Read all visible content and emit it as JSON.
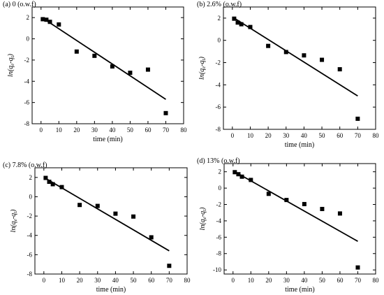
{
  "chart_data": [
    {
      "type": "scatter",
      "title": "(a) 0 (o.w.f)",
      "xlabel": "time (min)",
      "ylabel_base": "ln(q",
      "ylabel_sub1": "e",
      "ylabel_mid": "-q",
      "ylabel_sub2": "t",
      "ylabel_end": ")",
      "xlim": [
        -5,
        80
      ],
      "ylim": [
        -8,
        3
      ],
      "xticks": [
        0,
        10,
        20,
        30,
        40,
        50,
        60,
        70,
        80
      ],
      "yticks": [
        -8,
        -6,
        -4,
        -2,
        0,
        2
      ],
      "grid": false,
      "series": [
        {
          "x": [
            1,
            3,
            5,
            10,
            20,
            30,
            40,
            50,
            60,
            70
          ],
          "y": [
            1.85,
            1.8,
            1.6,
            1.35,
            -1.2,
            -1.6,
            -2.6,
            -3.2,
            -2.9,
            -7.0
          ]
        }
      ],
      "fit_line": {
        "x": [
          1,
          70
        ],
        "y": [
          1.95,
          -5.7
        ]
      }
    },
    {
      "type": "scatter",
      "title": "(b) 2.6% (o.w.f)",
      "xlabel": "time (min)",
      "ylabel_base": "ln(q",
      "ylabel_sub1": "e",
      "ylabel_mid": "-q",
      "ylabel_sub2": "t",
      "ylabel_end": ")",
      "xlim": [
        -5,
        80
      ],
      "ylim": [
        -8,
        3
      ],
      "xticks": [
        0,
        10,
        20,
        30,
        40,
        50,
        60,
        70,
        80
      ],
      "yticks": [
        -8,
        -6,
        -4,
        -2,
        0,
        2
      ],
      "grid": false,
      "series": [
        {
          "x": [
            1,
            3,
            5,
            10,
            20,
            30,
            40,
            50,
            60,
            70
          ],
          "y": [
            1.95,
            1.6,
            1.45,
            1.2,
            -0.5,
            -1.05,
            -1.35,
            -1.75,
            -2.6,
            -7.05
          ]
        }
      ],
      "fit_line": {
        "x": [
          1,
          70
        ],
        "y": [
          2.0,
          -5.0
        ]
      }
    },
    {
      "type": "scatter",
      "title": "(c) 7.8% (o.w.f)",
      "xlabel": "time (min)",
      "ylabel_base": "ln(q",
      "ylabel_sub1": "e",
      "ylabel_mid": "-q",
      "ylabel_sub2": "t",
      "ylabel_end": ")",
      "xlim": [
        -5,
        80
      ],
      "ylim": [
        -8,
        3
      ],
      "xticks": [
        0,
        10,
        20,
        30,
        40,
        50,
        60,
        70,
        80
      ],
      "yticks": [
        -8,
        -6,
        -4,
        -2,
        0,
        2
      ],
      "grid": false,
      "series": [
        {
          "x": [
            1,
            3,
            5,
            10,
            20,
            30,
            40,
            50,
            60,
            70
          ],
          "y": [
            1.95,
            1.55,
            1.3,
            1.0,
            -0.85,
            -0.95,
            -1.75,
            -2.05,
            -4.2,
            -7.15
          ]
        }
      ],
      "fit_line": {
        "x": [
          1,
          70
        ],
        "y": [
          1.9,
          -5.6
        ]
      }
    },
    {
      "type": "scatter",
      "title": "(d) 13% (o.w.f)",
      "xlabel": "time (min)",
      "ylabel_base": "ln(q",
      "ylabel_sub1": "e",
      "ylabel_mid": "-q",
      "ylabel_sub2": "t",
      "ylabel_end": ")",
      "xlim": [
        -5,
        80
      ],
      "ylim": [
        -10.5,
        3
      ],
      "xticks": [
        0,
        10,
        20,
        30,
        40,
        50,
        60,
        70,
        80
      ],
      "yticks": [
        -10,
        -8,
        -6,
        -4,
        -2,
        0,
        2
      ],
      "grid": false,
      "series": [
        {
          "x": [
            1,
            3,
            5,
            10,
            20,
            30,
            40,
            50,
            60,
            70
          ],
          "y": [
            1.95,
            1.7,
            1.4,
            1.0,
            -0.7,
            -1.45,
            -1.95,
            -2.55,
            -3.1,
            -9.7
          ]
        }
      ],
      "fit_line": {
        "x": [
          1,
          70
        ],
        "y": [
          2.0,
          -6.5
        ]
      }
    }
  ]
}
